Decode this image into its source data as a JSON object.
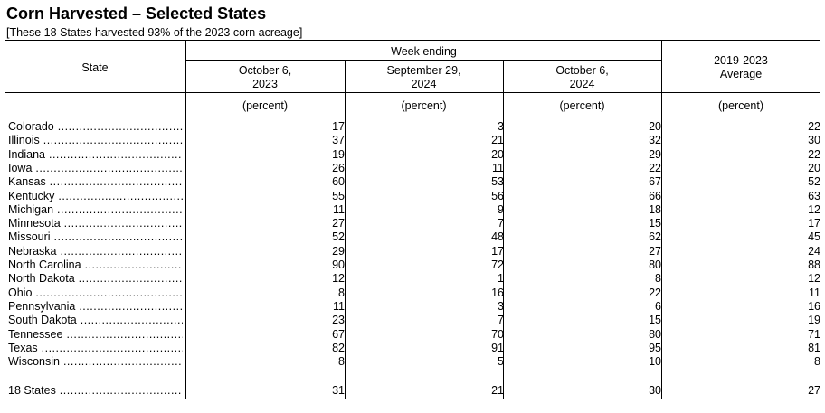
{
  "title": "Corn Harvested – Selected States",
  "subtitle": "[These 18 States harvested 93% of the 2023 corn acreage]",
  "header": {
    "state": "State",
    "week_ending": "Week ending",
    "col1": "October 6,\n2023",
    "col2": "September 29,\n2024",
    "col3": "October 6,\n2024",
    "col4": "2019-2023\nAverage",
    "unit": "(percent)"
  },
  "rows": [
    {
      "state": "Colorado",
      "c1": "17",
      "c2": "3",
      "c3": "20",
      "c4": "22"
    },
    {
      "state": "Illinois",
      "c1": "37",
      "c2": "21",
      "c3": "32",
      "c4": "30"
    },
    {
      "state": "Indiana",
      "c1": "19",
      "c2": "20",
      "c3": "29",
      "c4": "22"
    },
    {
      "state": "Iowa",
      "c1": "26",
      "c2": "11",
      "c3": "22",
      "c4": "20"
    },
    {
      "state": "Kansas",
      "c1": "60",
      "c2": "53",
      "c3": "67",
      "c4": "52"
    },
    {
      "state": "Kentucky",
      "c1": "55",
      "c2": "56",
      "c3": "66",
      "c4": "63"
    },
    {
      "state": "Michigan",
      "c1": "11",
      "c2": "9",
      "c3": "18",
      "c4": "12"
    },
    {
      "state": "Minnesota",
      "c1": "27",
      "c2": "7",
      "c3": "15",
      "c4": "17"
    },
    {
      "state": "Missouri",
      "c1": "52",
      "c2": "48",
      "c3": "62",
      "c4": "45"
    },
    {
      "state": "Nebraska",
      "c1": "29",
      "c2": "17",
      "c3": "27",
      "c4": "24"
    },
    {
      "state": "North Carolina",
      "c1": "90",
      "c2": "72",
      "c3": "80",
      "c4": "88"
    },
    {
      "state": "North Dakota",
      "c1": "12",
      "c2": "1",
      "c3": "8",
      "c4": "12"
    },
    {
      "state": "Ohio",
      "c1": "8",
      "c2": "16",
      "c3": "22",
      "c4": "11"
    },
    {
      "state": "Pennsylvania",
      "c1": "11",
      "c2": "3",
      "c3": "6",
      "c4": "16"
    },
    {
      "state": "South Dakota",
      "c1": "23",
      "c2": "7",
      "c3": "15",
      "c4": "19"
    },
    {
      "state": "Tennessee",
      "c1": "67",
      "c2": "70",
      "c3": "80",
      "c4": "71"
    },
    {
      "state": "Texas",
      "c1": "82",
      "c2": "91",
      "c3": "95",
      "c4": "81"
    },
    {
      "state": "Wisconsin",
      "c1": "8",
      "c2": "5",
      "c3": "10",
      "c4": "8"
    }
  ],
  "total": {
    "state": "18 States",
    "c1": "31",
    "c2": "21",
    "c3": "30",
    "c4": "27"
  }
}
